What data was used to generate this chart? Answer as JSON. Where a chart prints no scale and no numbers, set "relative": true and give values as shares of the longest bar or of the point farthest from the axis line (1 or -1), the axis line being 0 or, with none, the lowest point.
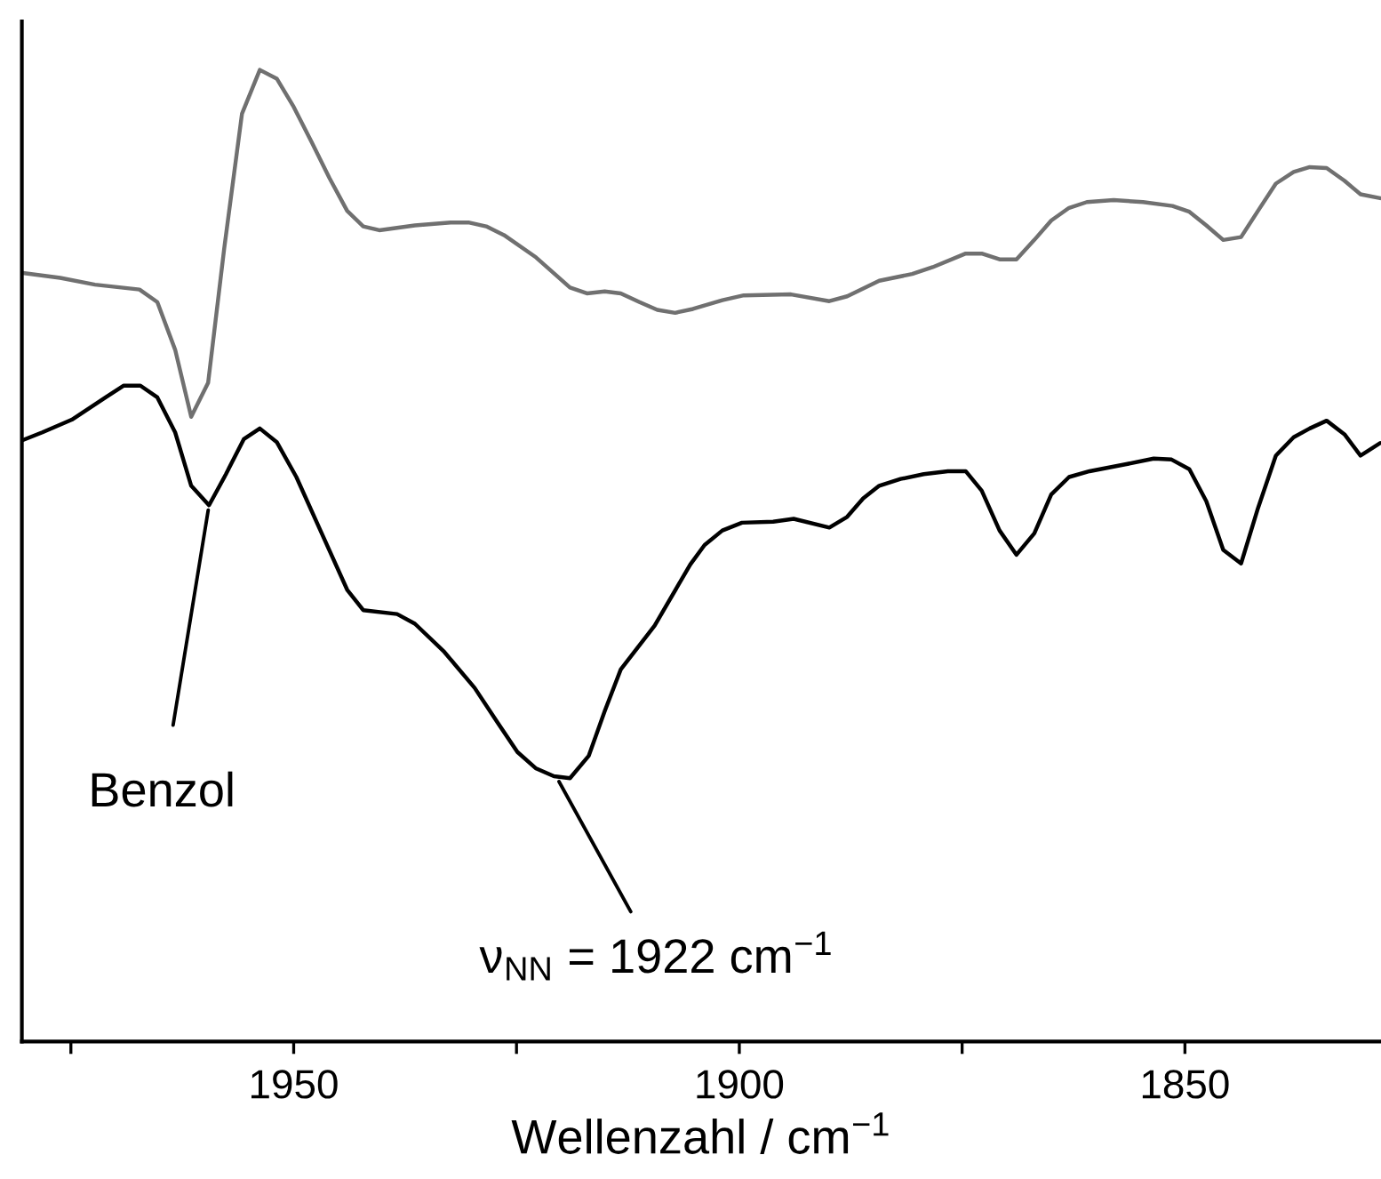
{
  "chart_data": {
    "type": "line",
    "relative": true,
    "xlabel": "Wellenzahl / cm$^{−1}$",
    "xlim": [
      1980.5,
      1828
    ],
    "xticks": [
      {
        "value": 1975,
        "label": null
      },
      1950,
      {
        "value": 1925,
        "label": null
      },
      1900,
      {
        "value": 1875,
        "label": null
      },
      1850
    ],
    "tick_labels": "x",
    "grid": false,
    "marker": "none",
    "line_style": "solid",
    "series": [
      {
        "color": "#707070",
        "x": [
          1980.4,
          1976.2,
          1972.3,
          1967.3,
          1965.3,
          1963.3,
          1961.5,
          1959.6,
          1957.8,
          1955.8,
          1953.8,
          1951.9,
          1950.0,
          1948.0,
          1946.0,
          1944.0,
          1942.2,
          1940.4,
          1936.4,
          1932.4,
          1930.4,
          1928.4,
          1926.4,
          1922.8,
          1919.0,
          1917.1,
          1915.1,
          1913.3,
          1911.2,
          1909.2,
          1907.2,
          1905.2,
          1901.9,
          1899.5,
          1894.2,
          1889.9,
          1887.9,
          1884.3,
          1880.6,
          1878.3,
          1874.6,
          1872.8,
          1870.8,
          1868.9,
          1866.9,
          1865.0,
          1863.0,
          1861.0,
          1858.0,
          1854.7,
          1851.4,
          1849.5,
          1847.6,
          1845.7,
          1843.7,
          1841.8,
          1839.8,
          1837.8,
          1836.0,
          1834.1,
          1832.1,
          1830.3,
          1828.1
        ],
        "values": [
          0.791,
          0.786,
          0.779,
          0.774,
          0.761,
          0.712,
          0.643,
          0.678,
          0.816,
          0.955,
          1.0,
          0.991,
          0.962,
          0.926,
          0.889,
          0.855,
          0.839,
          0.835,
          0.84,
          0.843,
          0.843,
          0.839,
          0.83,
          0.807,
          0.776,
          0.77,
          0.772,
          0.77,
          0.761,
          0.753,
          0.75,
          0.754,
          0.763,
          0.768,
          0.769,
          0.762,
          0.767,
          0.783,
          0.79,
          0.797,
          0.811,
          0.811,
          0.805,
          0.805,
          0.825,
          0.845,
          0.858,
          0.864,
          0.866,
          0.864,
          0.86,
          0.854,
          0.84,
          0.825,
          0.828,
          0.855,
          0.883,
          0.895,
          0.9,
          0.899,
          0.886,
          0.872,
          0.868
        ]
      },
      {
        "color": "#000000",
        "x": [
          1980.4,
          1978.2,
          1974.9,
          1971.1,
          1969.1,
          1967.2,
          1965.3,
          1963.3,
          1961.5,
          1959.5,
          1957.6,
          1955.6,
          1953.8,
          1951.9,
          1949.7,
          1947.0,
          1944.0,
          1942.2,
          1938.4,
          1936.4,
          1933.1,
          1929.7,
          1927.1,
          1924.9,
          1922.8,
          1920.8,
          1919.0,
          1916.9,
          1915.1,
          1913.3,
          1909.5,
          1905.5,
          1903.9,
          1901.9,
          1899.7,
          1896.2,
          1893.9,
          1889.9,
          1887.9,
          1886.1,
          1884.3,
          1881.9,
          1879.3,
          1876.6,
          1874.6,
          1872.8,
          1870.8,
          1868.9,
          1866.9,
          1865.0,
          1863.0,
          1860.7,
          1856.7,
          1853.5,
          1851.5,
          1849.5,
          1847.6,
          1845.7,
          1843.7,
          1841.8,
          1839.8,
          1837.8,
          1836.0,
          1834.1,
          1832.1,
          1830.3,
          1828.1
        ],
        "values": [
          0.619,
          0.627,
          0.64,
          0.663,
          0.675,
          0.675,
          0.663,
          0.627,
          0.572,
          0.552,
          0.584,
          0.62,
          0.631,
          0.617,
          0.581,
          0.526,
          0.465,
          0.444,
          0.44,
          0.43,
          0.401,
          0.364,
          0.328,
          0.298,
          0.281,
          0.273,
          0.271,
          0.294,
          0.34,
          0.383,
          0.428,
          0.491,
          0.511,
          0.526,
          0.534,
          0.535,
          0.538,
          0.529,
          0.54,
          0.559,
          0.572,
          0.579,
          0.584,
          0.587,
          0.587,
          0.567,
          0.526,
          0.501,
          0.523,
          0.563,
          0.581,
          0.587,
          0.594,
          0.6,
          0.599,
          0.589,
          0.556,
          0.506,
          0.492,
          0.549,
          0.603,
          0.622,
          0.631,
          0.639,
          0.625,
          0.603,
          0.616
        ]
      }
    ],
    "annotations": [
      {
        "text": "Benzol",
        "x": 1959.5,
        "y": 0.552
      },
      {
        "text": "ν$_{NN}$ = 1922 cm$^{−1}$",
        "x": 1920.5,
        "y": 0.272
      }
    ]
  }
}
